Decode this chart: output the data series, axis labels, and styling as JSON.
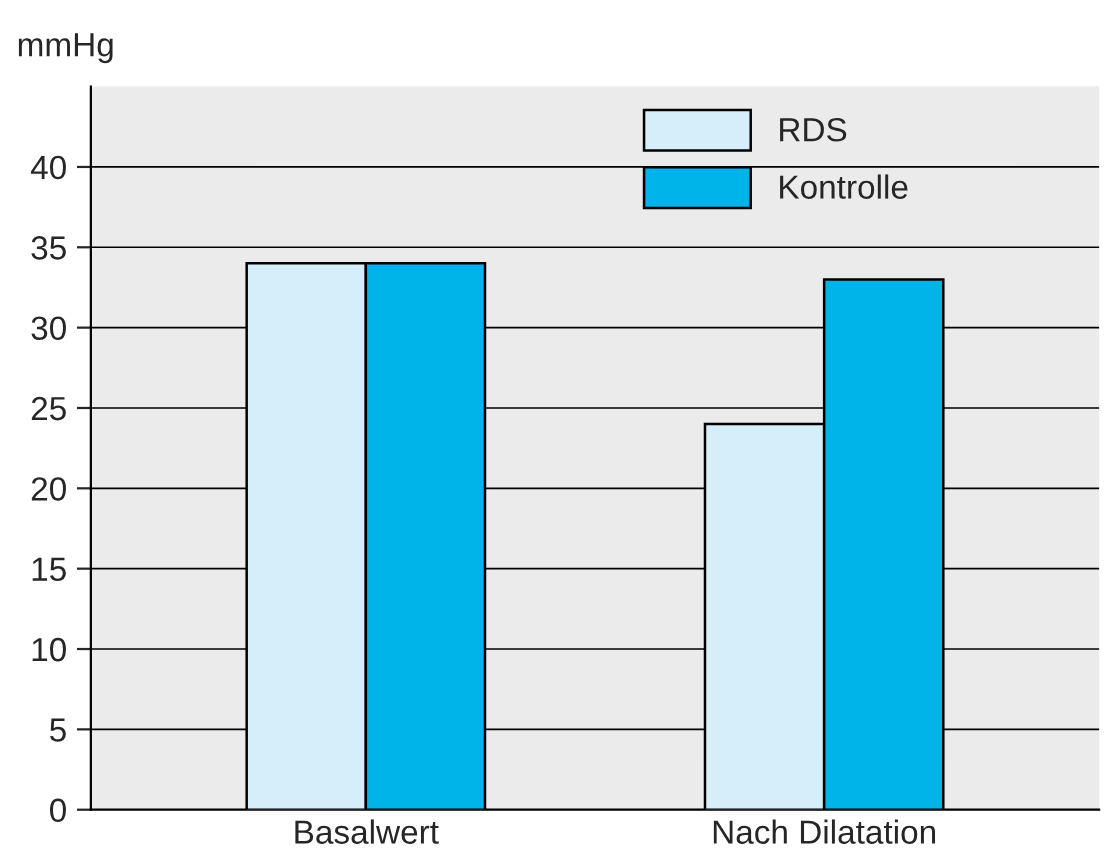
{
  "chart_data": {
    "type": "bar",
    "ylabel": "mmHg",
    "categories": [
      "Basalwert",
      "Nach Dilatation"
    ],
    "series": [
      {
        "name": "RDS",
        "color": "#d6eefa",
        "values": [
          34,
          24
        ]
      },
      {
        "name": "Kontrolle",
        "color": "#00b4ea",
        "values": [
          34,
          33
        ]
      }
    ],
    "ylim": [
      0,
      45
    ],
    "yticks": [
      0,
      5,
      10,
      15,
      20,
      25,
      30,
      35,
      40
    ],
    "grid": "y",
    "legend": "top"
  }
}
